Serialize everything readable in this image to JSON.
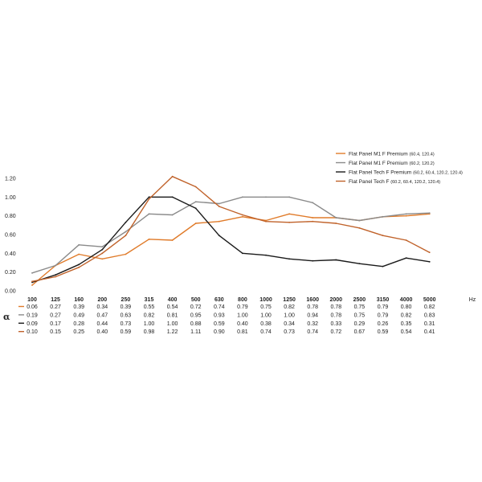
{
  "chart_data": {
    "type": "line",
    "x": [
      "100",
      "125",
      "160",
      "200",
      "250",
      "315",
      "400",
      "500",
      "630",
      "800",
      "1000",
      "1250",
      "1600",
      "2000",
      "2500",
      "3150",
      "4000",
      "5000"
    ],
    "xunit": "Hz",
    "ylim": [
      0,
      1.2
    ],
    "yticks": [
      "0.00",
      "0.20",
      "0.40",
      "0.60",
      "0.80",
      "1.00",
      "1.20"
    ],
    "row_symbol": "α",
    "grid": false,
    "legend_position": "top-right",
    "series": [
      {
        "name": "Flat Panel M1 F Premium",
        "sub": "(60.4, 120.4)",
        "color": "#e07b2a",
        "values": [
          0.06,
          0.27,
          0.39,
          0.34,
          0.39,
          0.55,
          0.54,
          0.72,
          0.74,
          0.79,
          0.75,
          0.82,
          0.78,
          0.78,
          0.75,
          0.79,
          0.8,
          0.82
        ],
        "labels": [
          "0.06",
          "0.27",
          "0.39",
          "0.34",
          "0.39",
          "0.55",
          "0.54",
          "0.72",
          "0.74",
          "0.79",
          "0.75",
          "0.82",
          "0.78",
          "0.78",
          "0.75",
          "0.79",
          "0.80",
          "0.82"
        ]
      },
      {
        "name": "Flat Panel M1 F Premium",
        "sub": "(60.2, 120.2)",
        "color": "#8a8a8a",
        "values": [
          0.19,
          0.27,
          0.49,
          0.47,
          0.63,
          0.82,
          0.81,
          0.95,
          0.93,
          1.0,
          1.0,
          1.0,
          0.94,
          0.78,
          0.75,
          0.79,
          0.82,
          0.83
        ],
        "labels": [
          "0.19",
          "0.27",
          "0.49",
          "0.47",
          "0.63",
          "0.82",
          "0.81",
          "0.95",
          "0.93",
          "1.00",
          "1.00",
          "1.00",
          "0.94",
          "0.78",
          "0.75",
          "0.79",
          "0.82",
          "0.83"
        ]
      },
      {
        "name": "Flat Panel Tech F Premium",
        "sub": "(60.2, 60.4, 120.2, 120.4)",
        "color": "#1a1a1a",
        "values": [
          0.09,
          0.17,
          0.28,
          0.44,
          0.73,
          1.0,
          1.0,
          0.88,
          0.59,
          0.4,
          0.38,
          0.34,
          0.32,
          0.33,
          0.29,
          0.26,
          0.35,
          0.31
        ],
        "labels": [
          "0.09",
          "0.17",
          "0.28",
          "0.44",
          "0.73",
          "1.00",
          "1.00",
          "0.88",
          "0.59",
          "0.40",
          "0.38",
          "0.34",
          "0.32",
          "0.33",
          "0.29",
          "0.26",
          "0.35",
          "0.31"
        ]
      },
      {
        "name": "Flat Panel Tech F",
        "sub": "(60.2, 60.4, 120.2, 120.4)",
        "color": "#c0622a",
        "values": [
          0.1,
          0.15,
          0.25,
          0.4,
          0.59,
          0.98,
          1.22,
          1.11,
          0.9,
          0.81,
          0.74,
          0.73,
          0.74,
          0.72,
          0.67,
          0.59,
          0.54,
          0.41
        ],
        "labels": [
          "0.10",
          "0.15",
          "0.25",
          "0.40",
          "0.59",
          "0.98",
          "1.22",
          "1.11",
          "0.90",
          "0.81",
          "0.74",
          "0.73",
          "0.74",
          "0.72",
          "0.67",
          "0.59",
          "0.54",
          "0.41"
        ]
      }
    ]
  }
}
